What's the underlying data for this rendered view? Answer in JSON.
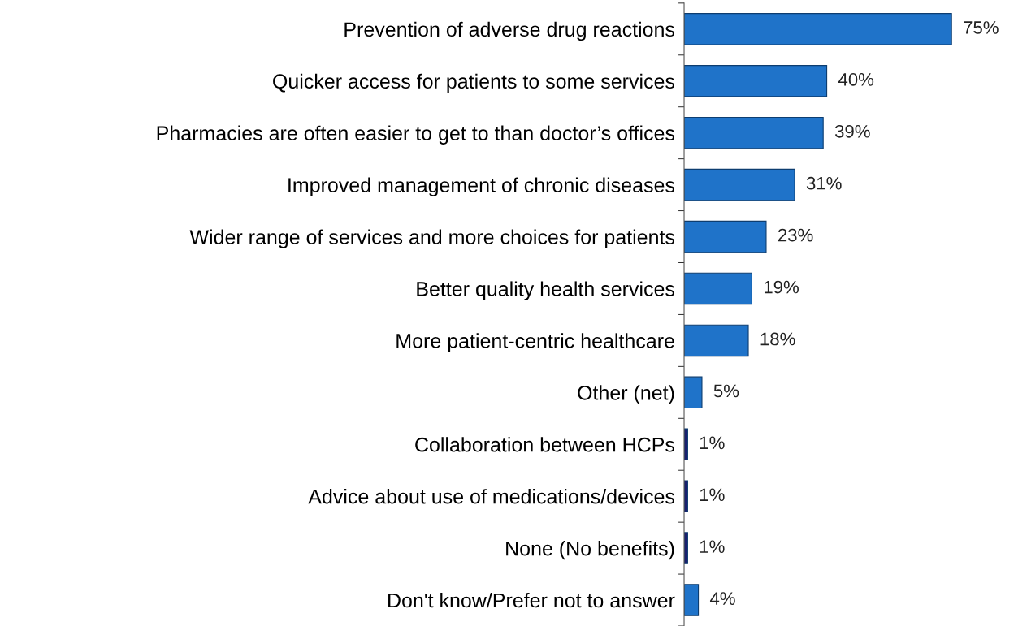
{
  "chart_data": {
    "type": "bar",
    "orientation": "horizontal",
    "categories": [
      "Prevention of adverse drug reactions",
      "Quicker access for patients to some services",
      "Pharmacies are often easier to get to than doctor’s offices",
      "Improved management of chronic diseases",
      "Wider range of services and more choices for patients",
      "Better quality health services",
      "More patient-centric healthcare",
      "Other (net)",
      "Collaboration between HCPs",
      "Advice about use of medications/devices",
      "None (No benefits)",
      "Don't know/Prefer not to answer"
    ],
    "values": [
      75,
      40,
      39,
      31,
      23,
      19,
      18,
      5,
      1,
      1,
      1,
      4
    ],
    "value_labels": [
      "75%",
      "40%",
      "39%",
      "31%",
      "23%",
      "19%",
      "18%",
      "5%",
      "1%",
      "1%",
      "1%",
      "4%"
    ],
    "colors": [
      "#1f73c9",
      "#1f73c9",
      "#1f73c9",
      "#1f73c9",
      "#1f73c9",
      "#1f73c9",
      "#1f73c9",
      "#1f73c9",
      "#1a1f6e",
      "#1a1f6e",
      "#1a1f6e",
      "#1f73c9"
    ],
    "grid": false,
    "legend": false
  }
}
